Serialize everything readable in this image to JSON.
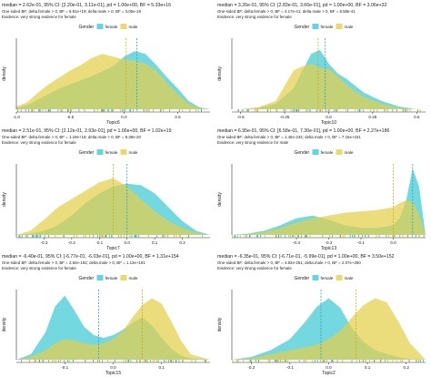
{
  "colors": {
    "female": "#3fc9d6",
    "male": "#e3cf4a",
    "overlap": "#8fb35a",
    "rug_female": "#2aa5b3",
    "rug_male": "#c9ad1e"
  },
  "chart_data": [
    {
      "type": "area",
      "stats_line": "median = 2.62e-01, 95% CI: [2.20e-01, 3.11e-01], pd = 1.00e+00, BF = 5.33e+16",
      "bf_line": "One-sided BF: delta.female > 0, BF = 6.91e+19; delta.male > 0, BF = 3.05e-19",
      "evidence_line": "Evidence: very strong evidence for female",
      "legend_title": "Gender",
      "legend": [
        "female",
        "male"
      ],
      "xlabel": "Topic6",
      "ylabel": "density",
      "xlim": [
        -1.0,
        0.8
      ],
      "ylim": [
        0,
        1.0
      ],
      "xticks": [
        -1.0,
        -0.5,
        0.0,
        0.5
      ],
      "x": [
        -1.0,
        -0.9,
        -0.8,
        -0.7,
        -0.6,
        -0.5,
        -0.4,
        -0.3,
        -0.2,
        -0.1,
        0.0,
        0.1,
        0.2,
        0.3,
        0.4,
        0.5,
        0.6,
        0.7,
        0.8
      ],
      "series": [
        {
          "name": "female",
          "values": [
            0.02,
            0.06,
            0.14,
            0.22,
            0.3,
            0.36,
            0.42,
            0.48,
            0.55,
            0.62,
            0.76,
            0.84,
            0.8,
            0.64,
            0.46,
            0.3,
            0.12,
            0.03,
            0.0
          ]
        },
        {
          "name": "male",
          "values": [
            0.04,
            0.1,
            0.24,
            0.36,
            0.46,
            0.56,
            0.64,
            0.74,
            0.8,
            0.76,
            0.72,
            0.7,
            0.66,
            0.56,
            0.38,
            0.22,
            0.08,
            0.02,
            0.0
          ]
        }
      ],
      "medians": {
        "female": 0.12,
        "male": 0.02
      }
    },
    {
      "type": "area",
      "stats_line": "median = 3.26e-01, 95% CI: [2.83e-01, 3.66e-01], pd = 1.00e+00, BF = 3.06e+32",
      "bf_line": "One-sided BF: delta.female > 0, BF = 4.17e-41; delta.male > 0, BF = 8.58e-41",
      "evidence_line": "Evidence: very strong evidence for female",
      "legend_title": "Gender",
      "legend": [
        "female",
        "male"
      ],
      "xlabel": "Topic10",
      "ylabel": "density",
      "xlim": [
        -0.55,
        0.55
      ],
      "ylim": [
        0,
        1.0
      ],
      "xticks": [
        -0.5,
        -0.25,
        0.0,
        0.25,
        0.5
      ],
      "x": [
        -0.5,
        -0.4,
        -0.3,
        -0.2,
        -0.15,
        -0.1,
        -0.05,
        0.0,
        0.05,
        0.1,
        0.15,
        0.2,
        0.3,
        0.4,
        0.5
      ],
      "series": [
        {
          "name": "female",
          "values": [
            0.0,
            0.02,
            0.08,
            0.3,
            0.55,
            0.8,
            0.86,
            0.66,
            0.52,
            0.44,
            0.34,
            0.24,
            0.12,
            0.04,
            0.0
          ]
        },
        {
          "name": "male",
          "values": [
            0.0,
            0.03,
            0.12,
            0.56,
            0.62,
            0.66,
            0.6,
            0.58,
            0.48,
            0.36,
            0.26,
            0.18,
            0.08,
            0.02,
            0.0
          ]
        }
      ],
      "medians": {
        "female": -0.02,
        "male": -0.06
      }
    },
    {
      "type": "area",
      "stats_line": "median = 2.51e-01, 95% CI: [2.12e-01, 2.93e-01], pd = 1.00e+00, BF = 1.02e+19",
      "bf_line": "One-sided BF: delta.female > 0, BF = 1.19e+18; delta.male > 0, BF = 8.38e-20",
      "evidence_line": "Evidence: very strong evidence for female",
      "legend_title": "Gender",
      "legend": [
        "female",
        "male"
      ],
      "xlabel": "Topic7",
      "ylabel": "density",
      "xlim": [
        -0.4,
        0.3
      ],
      "ylim": [
        0,
        1.0
      ],
      "xticks": [
        -0.3,
        -0.2,
        -0.1,
        0.0,
        0.1,
        0.2
      ],
      "x": [
        -0.4,
        -0.35,
        -0.3,
        -0.25,
        -0.2,
        -0.15,
        -0.1,
        -0.05,
        0.0,
        0.05,
        0.1,
        0.15,
        0.2,
        0.25,
        0.3
      ],
      "series": [
        {
          "name": "female",
          "values": [
            0.0,
            0.02,
            0.06,
            0.14,
            0.28,
            0.46,
            0.6,
            0.7,
            0.74,
            0.72,
            0.6,
            0.4,
            0.2,
            0.06,
            0.0
          ]
        },
        {
          "name": "male",
          "values": [
            0.0,
            0.06,
            0.22,
            0.4,
            0.52,
            0.64,
            0.76,
            0.82,
            0.7,
            0.52,
            0.34,
            0.2,
            0.1,
            0.03,
            0.0
          ]
        }
      ],
      "medians": {
        "female": 0.0,
        "male": -0.05
      }
    },
    {
      "type": "area",
      "stats_line": "median = 6.95e-01, 95% CI: [6.58e-01, 7.30e-01], pd = 1.00e+00, BF = 2.27e+186",
      "bf_line": "One-sided BF: delta.female > 0, BF = 1.45e-232; delta.male > 0, BF = 7.15e+231",
      "evidence_line": "Evidence: very strong evidence for male",
      "legend_title": "Gender",
      "legend": [
        "female",
        "male"
      ],
      "xlabel": "Topic13",
      "ylabel": "density",
      "xlim": [
        -0.5,
        0.1
      ],
      "ylim": [
        0,
        1.0
      ],
      "xticks": [
        -0.3,
        -0.2,
        -0.1,
        0.0
      ],
      "x": [
        -0.5,
        -0.45,
        -0.4,
        -0.35,
        -0.3,
        -0.25,
        -0.2,
        -0.15,
        -0.1,
        -0.05,
        0.0,
        0.02,
        0.04,
        0.06,
        0.08,
        0.1
      ],
      "series": [
        {
          "name": "female",
          "values": [
            0.0,
            0.02,
            0.06,
            0.14,
            0.24,
            0.28,
            0.22,
            0.14,
            0.1,
            0.1,
            0.14,
            0.24,
            0.5,
            0.96,
            0.7,
            0.0
          ]
        },
        {
          "name": "male",
          "values": [
            0.0,
            0.01,
            0.04,
            0.1,
            0.18,
            0.24,
            0.28,
            0.32,
            0.34,
            0.36,
            0.4,
            0.46,
            0.5,
            0.48,
            0.3,
            0.0
          ]
        }
      ],
      "medians": {
        "female": 0.06,
        "male": 0.0
      }
    },
    {
      "type": "area",
      "stats_line": "median = -6.40e-01, 95% CI: [-6.77e-01, -6.03e-01], pd = 1.00e+00, BF = 1.31e+154",
      "bf_line": "One-sided BF: delta.female > 0, BF = 2.84e-192; delta.male > 0, BF = 1.13e+191",
      "evidence_line": "Evidence: very strong evidence for female",
      "legend_title": "Gender",
      "legend": [
        "female",
        "male"
      ],
      "xlabel": "Topic15",
      "ylabel": "density",
      "xlim": [
        -0.2,
        0.2
      ],
      "ylim": [
        0,
        1.0
      ],
      "xticks": [
        -0.1,
        0.0,
        0.1
      ],
      "x": [
        -0.2,
        -0.17,
        -0.14,
        -0.12,
        -0.1,
        -0.08,
        -0.06,
        -0.04,
        -0.02,
        0.0,
        0.02,
        0.04,
        0.06,
        0.08,
        0.1,
        0.12,
        0.14,
        0.16,
        0.2
      ],
      "series": [
        {
          "name": "female",
          "values": [
            0.0,
            0.08,
            0.4,
            0.78,
            0.94,
            0.72,
            0.48,
            0.36,
            0.32,
            0.36,
            0.44,
            0.54,
            0.62,
            0.5,
            0.32,
            0.16,
            0.06,
            0.02,
            0.0
          ]
        },
        {
          "name": "male",
          "values": [
            0.0,
            0.04,
            0.14,
            0.24,
            0.3,
            0.28,
            0.24,
            0.22,
            0.24,
            0.3,
            0.42,
            0.62,
            0.8,
            0.9,
            0.82,
            0.56,
            0.28,
            0.08,
            0.0
          ]
        }
      ],
      "medians": {
        "female": -0.03,
        "male": 0.06
      }
    },
    {
      "type": "area",
      "stats_line": "median = -6.35e-01, 95% CI: [-6.71e-01, -5.99e-01], pd = 1.00e+00, BF = 3.50e+152",
      "bf_line": "One-sided BF: delta.female > 0, BF = 4.82e-251; delta.male > 0, BF = 2.07e+250",
      "evidence_line": "Evidence: very strong evidence for female",
      "legend_title": "Gender",
      "legend": [
        "female",
        "male"
      ],
      "xlabel": "Topic2",
      "ylabel": "density",
      "xlim": [
        -0.25,
        0.25
      ],
      "ylim": [
        0,
        1.0
      ],
      "xticks": [
        -0.2,
        -0.1,
        0.0,
        0.1,
        0.2
      ],
      "x": [
        -0.25,
        -0.2,
        -0.15,
        -0.1,
        -0.06,
        -0.03,
        0.0,
        0.03,
        0.06,
        0.09,
        0.12,
        0.15,
        0.18,
        0.21,
        0.25
      ],
      "series": [
        {
          "name": "female",
          "values": [
            0.0,
            0.04,
            0.14,
            0.3,
            0.56,
            0.78,
            0.9,
            0.76,
            0.46,
            0.26,
            0.14,
            0.08,
            0.04,
            0.01,
            0.0
          ]
        },
        {
          "name": "male",
          "values": [
            0.0,
            0.02,
            0.08,
            0.14,
            0.18,
            0.22,
            0.3,
            0.42,
            0.62,
            0.8,
            0.9,
            0.84,
            0.56,
            0.24,
            0.0
          ]
        }
      ],
      "medians": {
        "female": -0.02,
        "male": 0.07
      }
    }
  ]
}
